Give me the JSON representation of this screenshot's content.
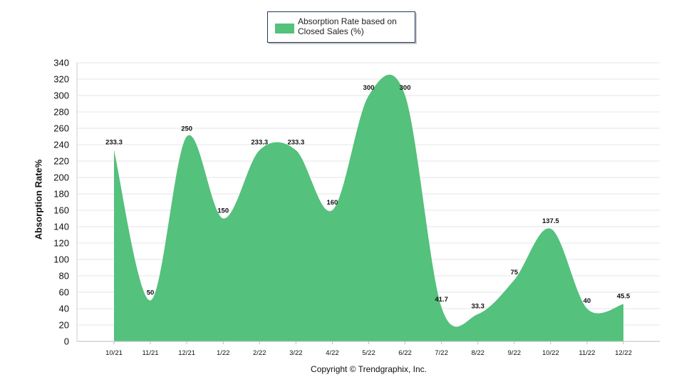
{
  "legend": {
    "label": "Absorption Rate based on Closed Sales (%)"
  },
  "footer": {
    "copyright": "Copyright © Trendgraphix, Inc."
  },
  "chart_data": {
    "type": "area",
    "title": "",
    "xlabel": "",
    "ylabel": "Absorption Rate%",
    "ylim": [
      0,
      340
    ],
    "yticks": [
      0,
      20,
      40,
      60,
      80,
      100,
      120,
      140,
      160,
      180,
      200,
      220,
      240,
      260,
      280,
      300,
      320,
      340
    ],
    "grid": true,
    "legend_position": "top-center",
    "categories": [
      "10/21",
      "11/21",
      "12/21",
      "1/22",
      "2/22",
      "3/22",
      "4/22",
      "5/22",
      "6/22",
      "7/22",
      "8/22",
      "9/22",
      "10/22",
      "11/22",
      "12/22"
    ],
    "series": [
      {
        "name": "Absorption Rate based on Closed Sales (%)",
        "color": "#54c17c",
        "values": [
          233.3,
          50,
          250,
          150,
          233.3,
          233.3,
          160,
          300,
          300,
          41.7,
          33.3,
          75,
          137.5,
          40,
          45.5
        ],
        "labels": [
          "233.3",
          "50",
          "250",
          "150",
          "233.3",
          "233.3",
          "160",
          "300",
          "300",
          "41.7",
          "33.3",
          "75",
          "137.5",
          "40",
          "45.5"
        ]
      }
    ]
  }
}
